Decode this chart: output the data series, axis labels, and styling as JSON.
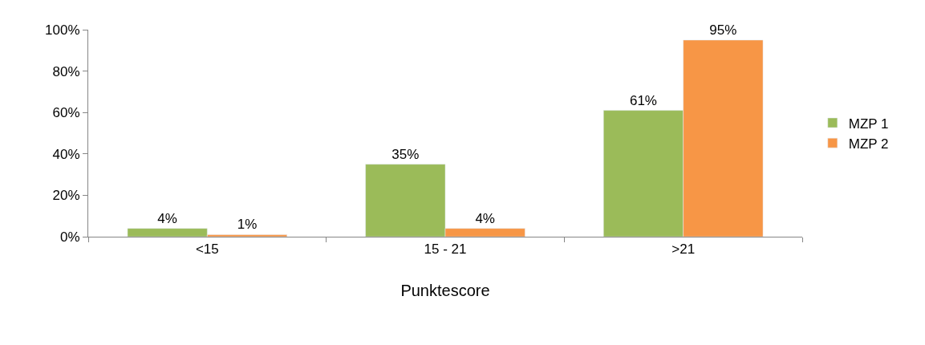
{
  "chart_data": {
    "type": "bar",
    "xlabel": "Punktescore",
    "categories": [
      "<15",
      "15 - 21",
      ">21"
    ],
    "series": [
      {
        "name": "MZP 1",
        "color": "#9bbb59",
        "values": [
          4,
          35,
          61
        ],
        "value_labels": [
          "4%",
          "35%",
          "61%"
        ]
      },
      {
        "name": "MZP 2",
        "color": "#f79646",
        "values": [
          1,
          4,
          95
        ],
        "value_labels": [
          "1%",
          "4%",
          "95%"
        ]
      }
    ],
    "ylim": [
      0,
      100
    ],
    "yticks": [
      {
        "value": 0,
        "label": "0%"
      },
      {
        "value": 20,
        "label": "20%"
      },
      {
        "value": 40,
        "label": "40%"
      },
      {
        "value": 60,
        "label": "60%"
      },
      {
        "value": 80,
        "label": "80%"
      },
      {
        "value": 100,
        "label": "100%"
      }
    ],
    "legend": "right"
  }
}
